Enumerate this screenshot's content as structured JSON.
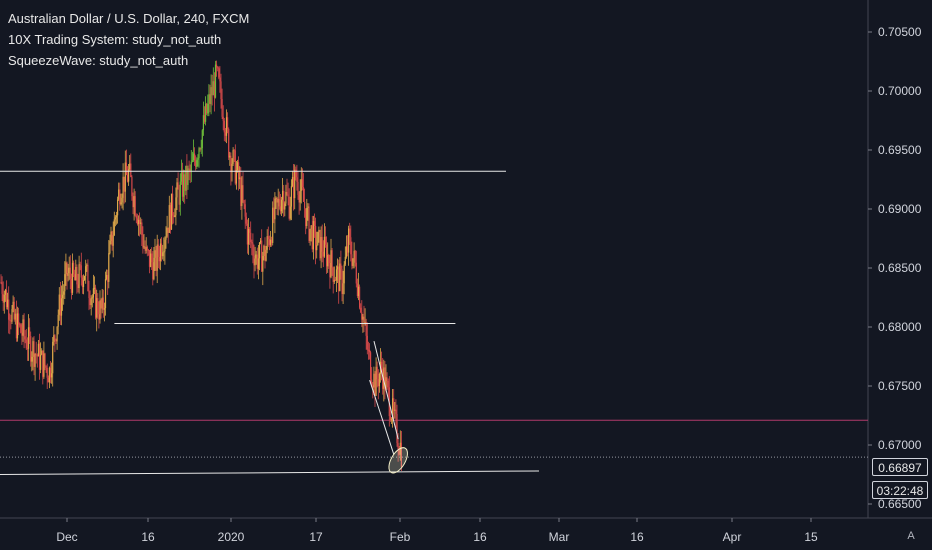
{
  "legend": {
    "title": "Australian Dollar / U.S. Dollar, 240, FXCM",
    "indicator1": "10X Trading System: study_not_auth",
    "indicator2": "SqueezeWave: study_not_auth"
  },
  "price_badge": "0.66897",
  "countdown_badge": "03:22:48",
  "scale_mode_label": "A",
  "colors": {
    "background": "#131722",
    "up": "#6fbf3a",
    "down": "#d94a4a",
    "neutral": "#e0a94a",
    "trendline": "#e8e8e8",
    "red_level": "#b03a6a",
    "ellipse": "#f5f0c8"
  },
  "chart_data": {
    "type": "candlestick",
    "title": "Australian Dollar / U.S. Dollar, 240, FXCM",
    "ylim": [
      0.665,
      0.7075
    ],
    "price_ticks": [
      "0.70500",
      "0.70000",
      "0.69500",
      "0.69000",
      "0.68500",
      "0.68000",
      "0.67500",
      "0.67000",
      "0.66500"
    ],
    "time_ticks": [
      "Dec",
      "16",
      "2020",
      "17",
      "Feb",
      "16",
      "Mar",
      "16",
      "Apr",
      "15"
    ],
    "last_price": 0.66897,
    "red_level": 0.6721,
    "path_points": [
      [
        0,
        0.6838
      ],
      [
        6,
        0.6805
      ],
      [
        12,
        0.6788
      ],
      [
        18,
        0.6772
      ],
      [
        22,
        0.6762
      ],
      [
        26,
        0.6812
      ],
      [
        30,
        0.6845
      ],
      [
        34,
        0.6838
      ],
      [
        38,
        0.6848
      ],
      [
        42,
        0.6822
      ],
      [
        46,
        0.6812
      ],
      [
        50,
        0.687
      ],
      [
        54,
        0.6918
      ],
      [
        58,
        0.693
      ],
      [
        62,
        0.6898
      ],
      [
        66,
        0.686
      ],
      [
        70,
        0.6852
      ],
      [
        74,
        0.6878
      ],
      [
        78,
        0.6902
      ],
      [
        82,
        0.6918
      ],
      [
        86,
        0.693
      ],
      [
        88,
        0.6942
      ],
      [
        92,
        0.697
      ],
      [
        95,
        0.6993
      ],
      [
        98,
        0.7012
      ],
      [
        101,
        0.6985
      ],
      [
        104,
        0.6948
      ],
      [
        108,
        0.6925
      ],
      [
        112,
        0.688
      ],
      [
        116,
        0.6858
      ],
      [
        120,
        0.6862
      ],
      [
        124,
        0.6892
      ],
      [
        128,
        0.6915
      ],
      [
        131,
        0.6905
      ],
      [
        134,
        0.6928
      ],
      [
        137,
        0.691
      ],
      [
        140,
        0.6885
      ],
      [
        143,
        0.6872
      ],
      [
        146,
        0.6868
      ],
      [
        149,
        0.6858
      ],
      [
        152,
        0.6845
      ],
      [
        155,
        0.6838
      ],
      [
        158,
        0.6872
      ],
      [
        161,
        0.6852
      ],
      [
        164,
        0.6815
      ],
      [
        167,
        0.6775
      ],
      [
        170,
        0.6752
      ],
      [
        173,
        0.6765
      ],
      [
        176,
        0.6742
      ],
      [
        179,
        0.6718
      ],
      [
        182,
        0.6695
      ]
    ],
    "trendlines": [
      {
        "from": [
          0,
          0.6932
        ],
        "to": [
          230,
          0.6932
        ]
      },
      {
        "from": [
          52,
          0.6803
        ],
        "to": [
          207,
          0.6803
        ]
      },
      {
        "from": [
          0,
          0.6675
        ],
        "to": [
          245,
          0.6678
        ]
      },
      {
        "from": [
          170,
          0.6788
        ],
        "to": [
          181,
          0.6705
        ]
      },
      {
        "from": [
          168,
          0.6755
        ],
        "to": [
          179,
          0.6692
        ]
      }
    ],
    "ellipse": {
      "x": 181,
      "y": 0.6687
    }
  }
}
